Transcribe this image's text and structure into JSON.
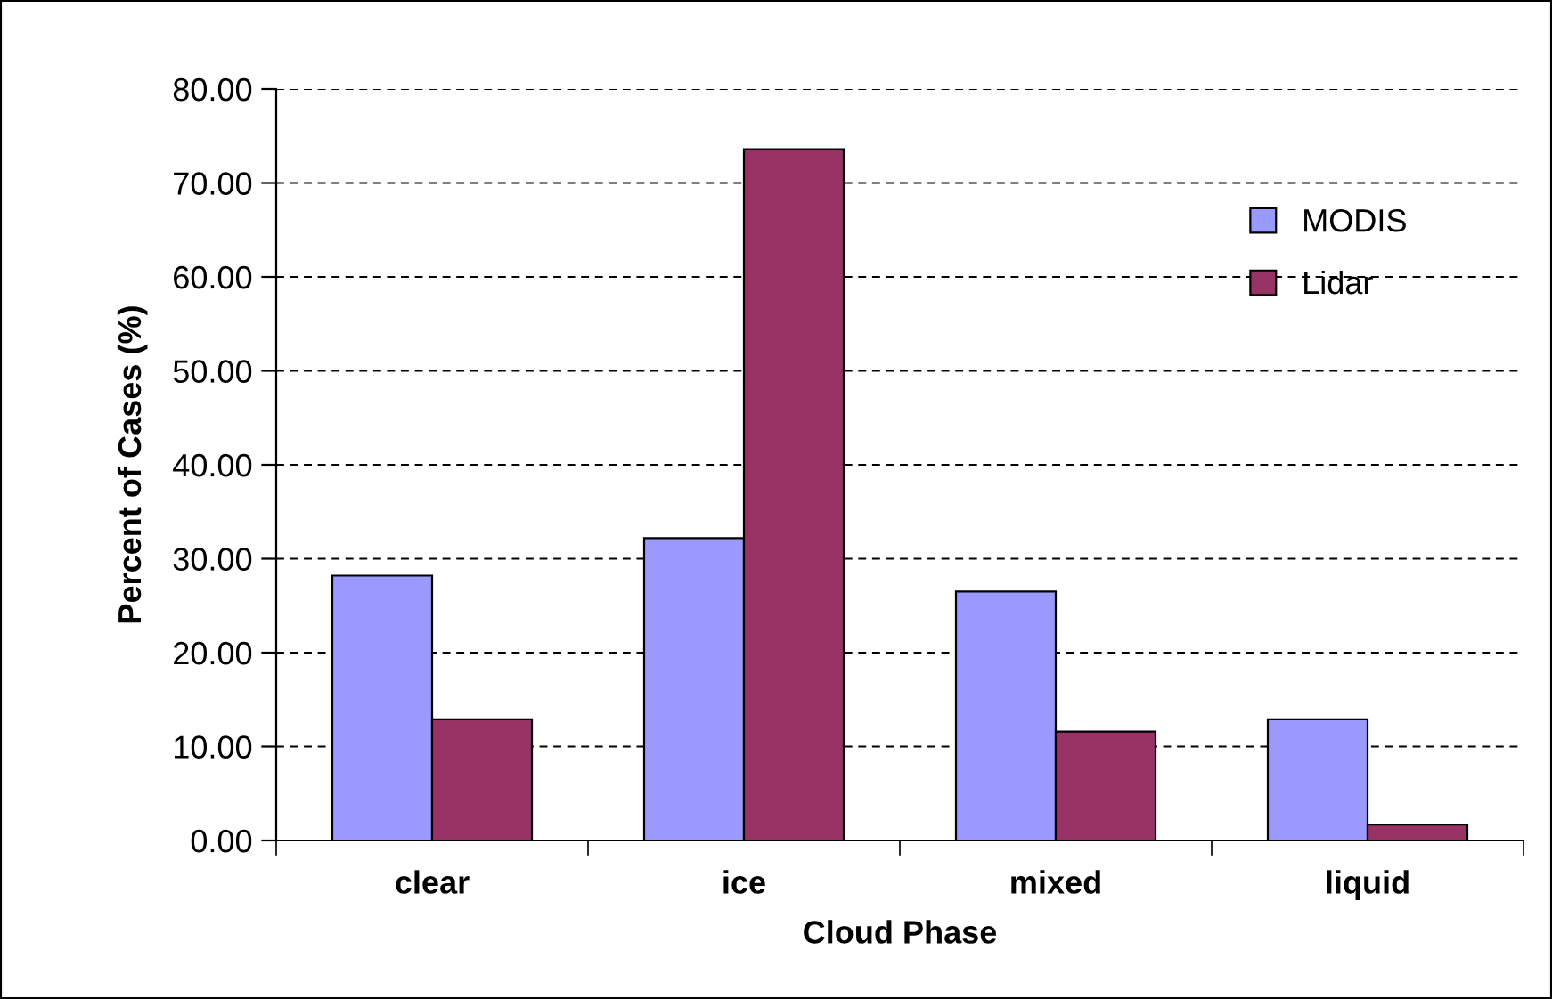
{
  "chart_data": {
    "type": "bar",
    "xlabel": "Cloud Phase",
    "ylabel": "Percent of Cases (%)",
    "categories": [
      "clear",
      "ice",
      "mixed",
      "liquid"
    ],
    "series": [
      {
        "name": "MODIS",
        "color": "#9999ff",
        "values": [
          28.2,
          32.2,
          26.5,
          12.9
        ]
      },
      {
        "name": "Lidar",
        "color": "#993366",
        "values": [
          12.9,
          73.6,
          11.6,
          1.7
        ]
      }
    ],
    "ylim": [
      0,
      80
    ],
    "yticks": [
      {
        "value": 0,
        "label": "0.00"
      },
      {
        "value": 10,
        "label": "10.00"
      },
      {
        "value": 20,
        "label": "20.00"
      },
      {
        "value": 30,
        "label": "30.00"
      },
      {
        "value": 40,
        "label": "40.00"
      },
      {
        "value": 50,
        "label": "50.00"
      },
      {
        "value": 60,
        "label": "60.00"
      },
      {
        "value": 70,
        "label": "70.00"
      },
      {
        "value": 80,
        "label": "80.00"
      }
    ],
    "grid": "y",
    "legend": "top right"
  }
}
